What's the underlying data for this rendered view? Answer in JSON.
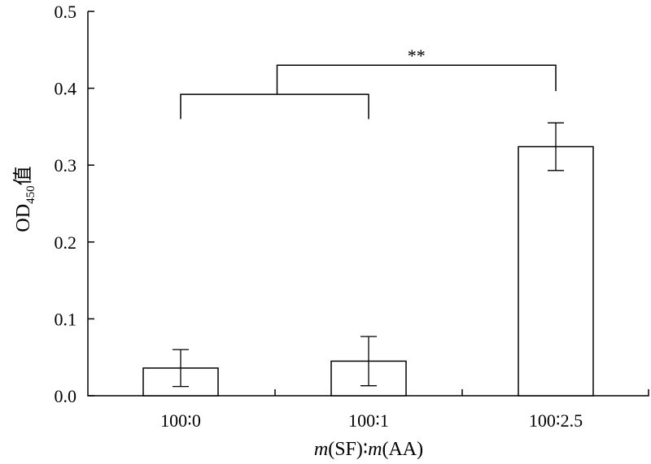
{
  "chart_data": {
    "type": "bar",
    "categories": [
      "100∶0",
      "100∶1",
      "100∶2.5"
    ],
    "values": [
      0.036,
      0.045,
      0.324
    ],
    "errors": [
      0.024,
      0.032,
      0.031
    ],
    "ylim": [
      0,
      0.5
    ],
    "yticks": [
      0.0,
      0.1,
      0.2,
      0.3,
      0.4,
      0.5
    ],
    "ytick_labels": [
      "0.0",
      "0.1",
      "0.2",
      "0.3",
      "0.4",
      "0.5"
    ],
    "xlabel": {
      "var1": "m",
      "paren1": "(SF)",
      "sep": "∶",
      "var2": "m",
      "paren2": "(AA)"
    },
    "ylabel": {
      "main": "OD",
      "sub": "450",
      "suffix": "值"
    },
    "significance": {
      "label": "**",
      "group_left": [
        0,
        1
      ],
      "right": 2,
      "group_level": 0.392,
      "top_level": 0.43,
      "right_leg_bottom": 0.392,
      "left_leg_bottom": 0.36
    },
    "grid": false,
    "legend": "none"
  }
}
